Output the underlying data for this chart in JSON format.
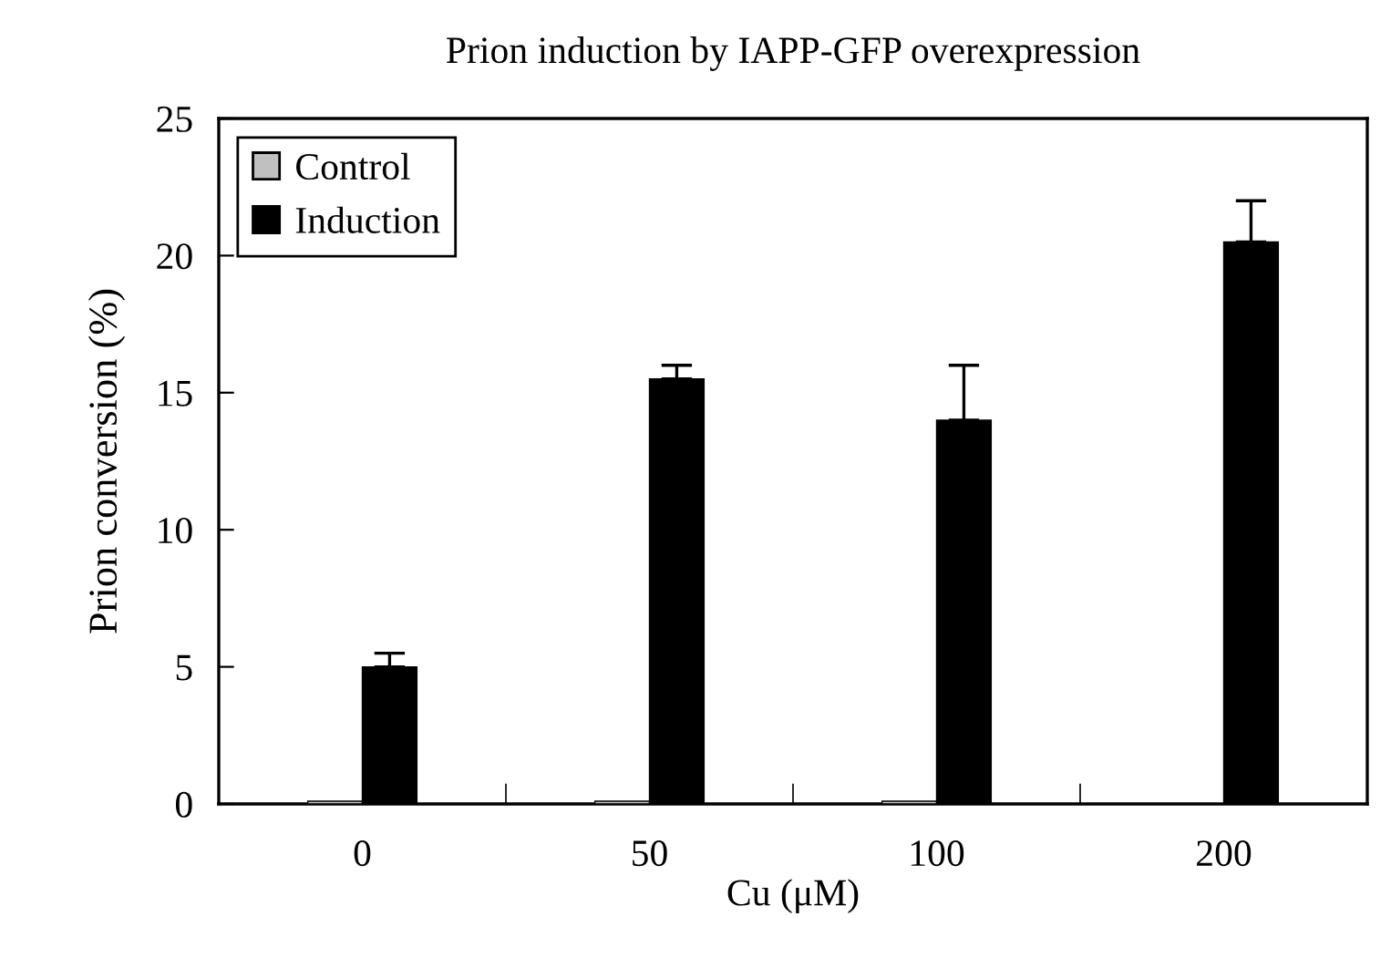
{
  "chart_data": {
    "type": "bar",
    "title": "Prion induction by IAPP-GFP overexpression",
    "xlabel": "Cu (μM)",
    "ylabel": "Prion conversion (%)",
    "categories": [
      "0",
      "50",
      "100",
      "200"
    ],
    "series": [
      {
        "name": "Control",
        "color": "#c0c0c0",
        "values": [
          0.1,
          0.1,
          0.1,
          null
        ]
      },
      {
        "name": "Induction",
        "color": "#000000",
        "values": [
          5,
          15.5,
          14,
          20.5
        ],
        "errors": [
          [
            5,
            5.5
          ],
          [
            15.5,
            16
          ],
          [
            14,
            16
          ],
          [
            20.5,
            22
          ]
        ]
      }
    ],
    "ylim": [
      0,
      25
    ],
    "yticks": [
      0,
      5,
      10,
      15,
      20,
      25
    ],
    "grid": false,
    "legend": "top left"
  }
}
